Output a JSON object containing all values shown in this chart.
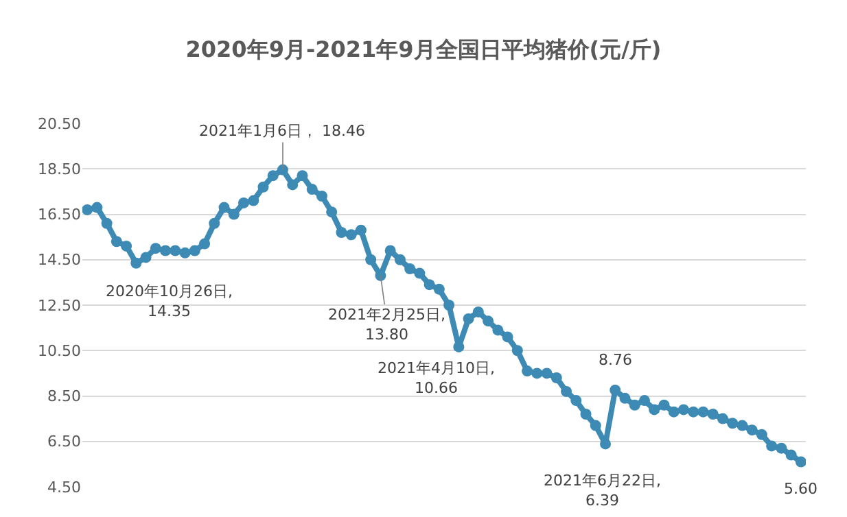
{
  "chart_data": {
    "type": "line",
    "title": "2020年9月-2021年9月全国日平均猪价(元/斤)",
    "categories": [
      null,
      null,
      null,
      null,
      null,
      null,
      null,
      null,
      null,
      null,
      null,
      null,
      null,
      null,
      null,
      null,
      null,
      null,
      null,
      null,
      null,
      null,
      null,
      null,
      null,
      null,
      null,
      null,
      null,
      null,
      null,
      null,
      null,
      null,
      null,
      null,
      null,
      null,
      null,
      null,
      null,
      null,
      null,
      null,
      null,
      null,
      null,
      null,
      null,
      null,
      null,
      null,
      null,
      null,
      null,
      null,
      null,
      null,
      null,
      null,
      null,
      null,
      null,
      null,
      null,
      null,
      null,
      null,
      null,
      null,
      null,
      null,
      null,
      null
    ],
    "series": [
      {
        "color": "#3d8ab5",
        "values": [
          16.7,
          16.8,
          16.1,
          15.3,
          15.1,
          14.35,
          14.6,
          15.0,
          14.9,
          14.9,
          14.8,
          14.9,
          15.2,
          16.1,
          16.8,
          16.5,
          17.0,
          17.1,
          17.7,
          18.2,
          18.46,
          17.8,
          18.2,
          17.6,
          17.3,
          16.6,
          15.7,
          15.6,
          15.8,
          14.5,
          13.8,
          14.9,
          14.5,
          14.1,
          13.9,
          13.4,
          13.2,
          12.5,
          10.66,
          11.9,
          12.2,
          11.8,
          11.4,
          11.1,
          10.5,
          9.6,
          9.5,
          9.5,
          9.3,
          8.7,
          8.3,
          7.7,
          7.2,
          6.39,
          8.76,
          8.4,
          8.1,
          8.3,
          7.9,
          8.1,
          7.8,
          7.9,
          7.8,
          7.8,
          7.7,
          7.5,
          7.3,
          7.2,
          7.0,
          6.8,
          6.3,
          6.2,
          5.9,
          5.6
        ]
      }
    ],
    "marker": "circle",
    "ylim": [
      4.5,
      20.5
    ],
    "yticks": [
      {
        "value": 4.5,
        "label": "4.50"
      },
      {
        "value": 6.5,
        "label": "6.50"
      },
      {
        "value": 8.5,
        "label": "8.50"
      },
      {
        "value": 10.5,
        "label": "10.50"
      },
      {
        "value": 12.5,
        "label": "12.50"
      },
      {
        "value": 14.5,
        "label": "14.50"
      },
      {
        "value": 16.5,
        "label": "16.50"
      },
      {
        "value": 18.5,
        "label": "18.50"
      },
      {
        "value": 20.5,
        "label": "20.50"
      }
    ],
    "tick_labels": "y",
    "grid": "y",
    "annotations": [
      "2020年10月26日,\n14.35",
      {
        "text": "2021年1月6日， 18.46",
        "y": 18.46
      },
      {
        "text": "2021年2月25日,\n13.80",
        "y": 13.8
      },
      "2021年4月10日,\n10.66",
      "2021年6月22日,\n6.39",
      {
        "text": "8.76",
        "y": 8.76
      },
      {
        "text": "5.60",
        "y": 5.6
      }
    ]
  }
}
